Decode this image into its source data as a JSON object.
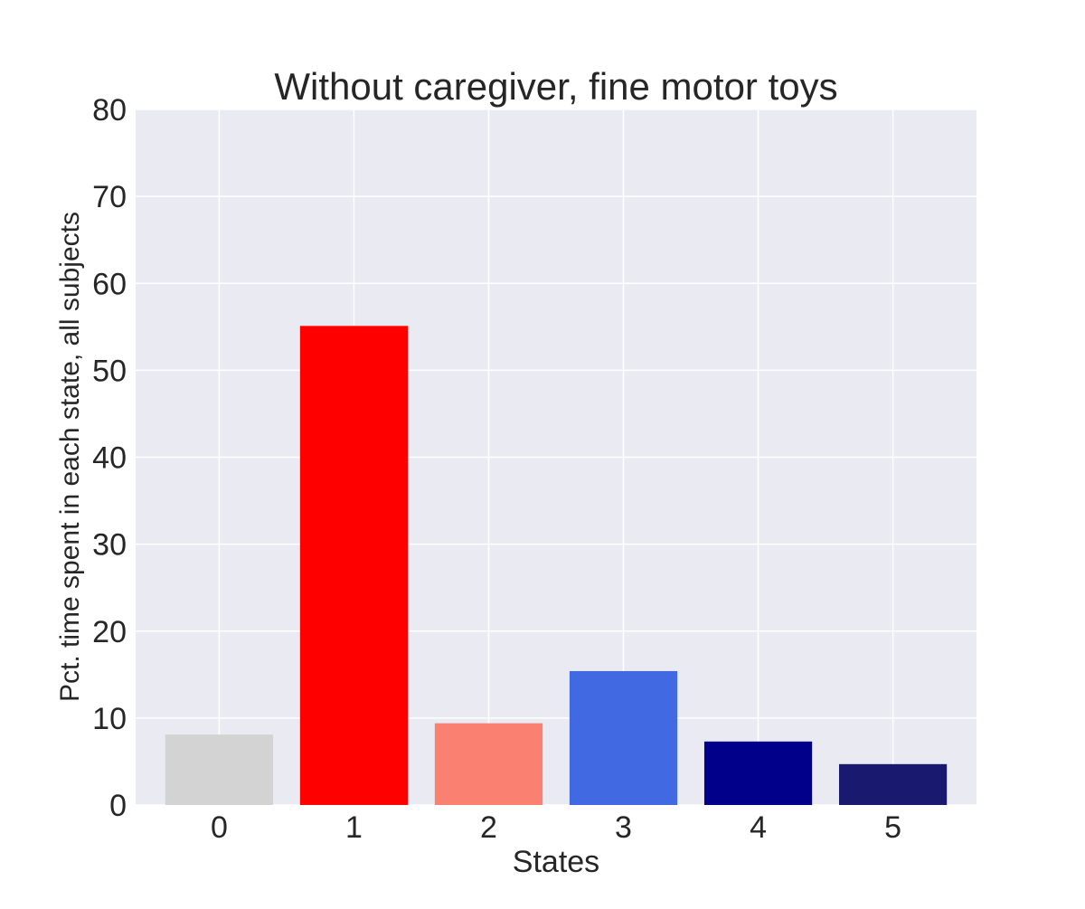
{
  "chart_data": {
    "type": "bar",
    "title": "Without caregiver, fine motor toys",
    "xlabel": "States",
    "ylabel": "Pct. time spent in each state, all subjects",
    "categories": [
      "0",
      "1",
      "2",
      "3",
      "4",
      "5"
    ],
    "values": [
      8.1,
      55.1,
      9.4,
      15.4,
      7.3,
      4.7
    ],
    "colors": [
      "#d3d3d3",
      "#ff0000",
      "#fa8072",
      "#4169e1",
      "#00008b",
      "#191970"
    ],
    "ylim": [
      0,
      80
    ],
    "yticks": [
      0,
      10,
      20,
      30,
      40,
      50,
      60,
      70,
      80
    ],
    "grid": true,
    "background": "#eaeaf2",
    "grid_color": "#ffffff"
  }
}
